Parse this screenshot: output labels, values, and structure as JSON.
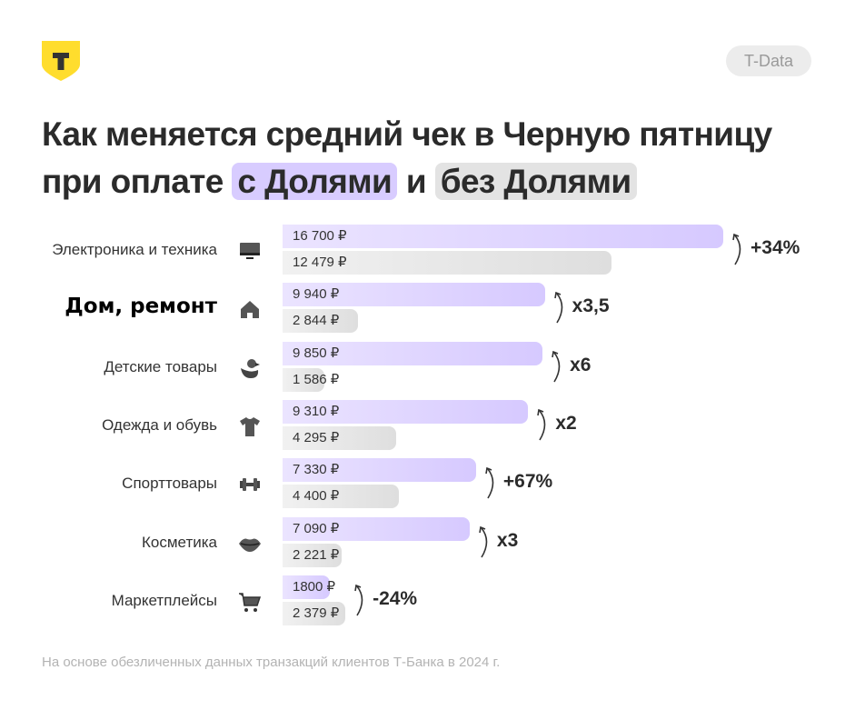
{
  "brand": {
    "logo_letter": "Т",
    "badge": "T-Data",
    "accent": "#ffdd2d"
  },
  "title": {
    "line1": "Как меняется средний чек в Черную пятницу",
    "line2_prefix": "при оплате",
    "with_label": "с Долями",
    "conj": "и",
    "without_label": "без Долями"
  },
  "colors": {
    "with": "#d6c9ff",
    "without": "#e0e0e0"
  },
  "footer": "На основе обезличенных данных транзакций клиентов Т-Банка в 2024 г.",
  "chart_data": {
    "type": "bar",
    "orientation": "horizontal",
    "title": "Как меняется средний чек в Черную пятницу при оплате с Долями и без Долями",
    "categories": [
      "Электроника и техника",
      "Дом, ремонт",
      "Детские товары",
      "Одежда и обувь",
      "Спорттовары",
      "Косметика",
      "Маркетплейсы"
    ],
    "icons": [
      "monitor-icon",
      "house-icon",
      "duck-icon",
      "tshirt-icon",
      "dumbbell-icon",
      "lips-icon",
      "cart-icon"
    ],
    "series": [
      {
        "name": "с Долями",
        "values": [
          16700,
          9940,
          9850,
          9310,
          7330,
          7090,
          1800
        ],
        "labels": [
          "16 700 ₽",
          "9 940 ₽",
          "9 850 ₽",
          "9 310 ₽",
          "7 330 ₽",
          "7 090 ₽",
          "1800 ₽"
        ]
      },
      {
        "name": "без Долями",
        "values": [
          12479,
          2844,
          1586,
          4295,
          4400,
          2221,
          2379
        ],
        "labels": [
          "12 479 ₽",
          "2 844 ₽",
          "1 586 ₽",
          "4 295 ₽",
          "4 400 ₽",
          "2 221 ₽",
          "2 379 ₽"
        ]
      }
    ],
    "deltas": [
      "+34%",
      "x3,5",
      "x6",
      "x2",
      "+67%",
      "x3",
      "-24%"
    ],
    "highlighted_category": "Дом, ремонт",
    "grid": false
  }
}
